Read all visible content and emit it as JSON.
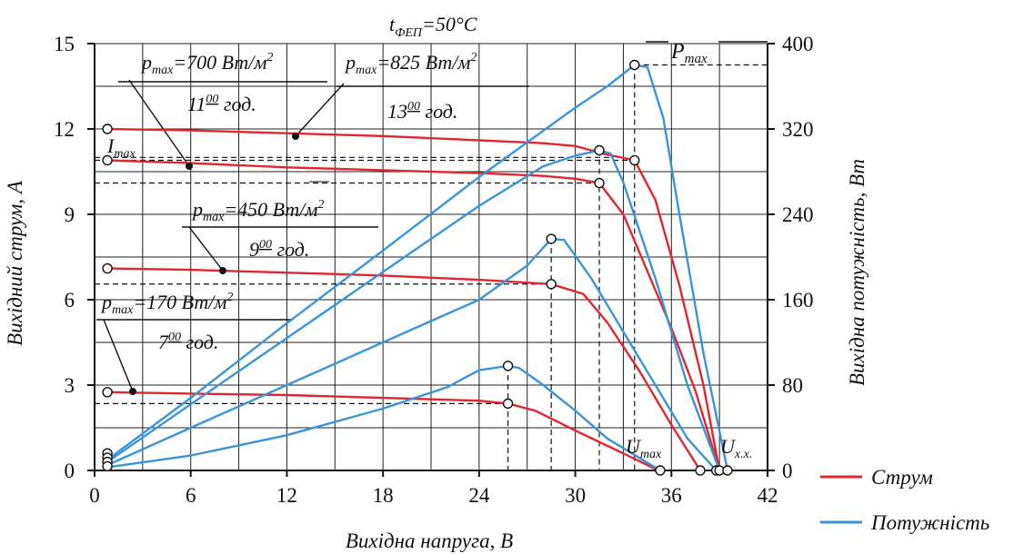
{
  "chart_data": {
    "type": "line",
    "title": "t",
    "title_sub": "ФЕП",
    "title_tail": "=50°C",
    "xlabel": "Вихідна напруга, В",
    "ylabel_left": "Вихідний струм, А",
    "ylabel_right": "Вихідна потужність, Вт",
    "xlim": [
      0,
      42
    ],
    "ylim_left": [
      0,
      15
    ],
    "ylim_right": [
      0,
      400
    ],
    "x_ticks": [
      "0",
      "6",
      "12",
      "18",
      "24",
      "30",
      "36",
      "42"
    ],
    "y_left_ticks": [
      "0",
      "3",
      "6",
      "9",
      "12",
      "15"
    ],
    "y_right_ticks": [
      "0",
      "80",
      "160",
      "240",
      "320",
      "400"
    ],
    "grid": true,
    "colors": {
      "current": "#e0262e",
      "power": "#3a95d8",
      "axis": "#111111"
    },
    "legend": [
      {
        "label": "Струм",
        "color": "#e0262e"
      },
      {
        "label": "Потужність",
        "color": "#3a95d8"
      }
    ],
    "series": [
      {
        "kind": "current",
        "x": [
          0.8,
          6,
          12,
          18,
          24,
          26,
          28,
          30,
          32,
          33.7,
          35,
          36.5,
          38,
          39
        ],
        "y": [
          12.0,
          11.95,
          11.85,
          11.75,
          11.6,
          11.55,
          11.5,
          11.4,
          11.1,
          10.9,
          9.5,
          6.5,
          3.0,
          0
        ]
      },
      {
        "kind": "current",
        "x": [
          0.8,
          6,
          12,
          18,
          24,
          28,
          30,
          31.5,
          33,
          34.5,
          36,
          37.5,
          39
        ],
        "y": [
          10.9,
          10.8,
          10.65,
          10.55,
          10.45,
          10.35,
          10.25,
          10.1,
          9.0,
          7.0,
          5.0,
          2.8,
          0
        ]
      },
      {
        "kind": "current",
        "x": [
          0.8,
          6,
          12,
          18,
          24,
          28.5,
          30.5,
          32,
          34,
          36,
          37.8
        ],
        "y": [
          7.1,
          7.05,
          6.95,
          6.85,
          6.7,
          6.55,
          6.2,
          5.2,
          3.5,
          1.6,
          0
        ]
      },
      {
        "kind": "current",
        "x": [
          0.8,
          6,
          12,
          18,
          24,
          25.8,
          27.5,
          30,
          33,
          35.2
        ],
        "y": [
          2.75,
          2.7,
          2.65,
          2.55,
          2.45,
          2.35,
          2.1,
          1.4,
          0.6,
          0
        ]
      },
      {
        "kind": "power",
        "x": [
          0.8,
          6,
          12,
          18,
          24,
          30,
          32,
          33.7,
          34.5,
          35.5,
          36.5,
          38,
          39.5
        ],
        "y": [
          10,
          68,
          138,
          206,
          275,
          340,
          360,
          380,
          378,
          330,
          240,
          110,
          0
        ]
      },
      {
        "kind": "power",
        "x": [
          0.8,
          6,
          12,
          18,
          24,
          28,
          30,
          31.5,
          32.2,
          33,
          35,
          37,
          39
        ],
        "y": [
          8,
          62,
          124,
          186,
          248,
          285,
          295,
          300,
          297,
          270,
          180,
          80,
          0
        ]
      },
      {
        "kind": "power",
        "x": [
          0.8,
          6,
          12,
          18,
          24,
          27,
          28.5,
          29.3,
          31,
          33,
          35,
          37,
          38.8
        ],
        "y": [
          5,
          40,
          80,
          120,
          160,
          192,
          217,
          216,
          180,
          130,
          80,
          30,
          0
        ]
      },
      {
        "kind": "power",
        "x": [
          0.8,
          6,
          12,
          18,
          22,
          24,
          25.8,
          26.5,
          28,
          30,
          32,
          35.3
        ],
        "y": [
          3,
          14,
          33,
          58,
          78,
          94,
          98,
          96,
          80,
          56,
          30,
          0
        ]
      }
    ],
    "open_markers": [
      {
        "x": 0.8,
        "y_current": 12.0
      },
      {
        "x": 0.8,
        "y_current": 10.9
      },
      {
        "x": 0.8,
        "y_current": 7.1
      },
      {
        "x": 0.8,
        "y_current": 2.75
      },
      {
        "x": 0.8,
        "y_current": 0.6
      },
      {
        "x": 0.8,
        "y_current": 0.45
      },
      {
        "x": 0.8,
        "y_current": 0.3
      },
      {
        "x": 0.8,
        "y_current": 0.15
      },
      {
        "x": 33.7,
        "y_current": 10.9
      },
      {
        "x": 31.5,
        "y_current": 10.1
      },
      {
        "x": 28.5,
        "y_current": 6.55
      },
      {
        "x": 25.8,
        "y_current": 2.35
      },
      {
        "x": 33.7,
        "y_power": 380
      },
      {
        "x": 31.5,
        "y_power": 300
      },
      {
        "x": 28.5,
        "y_power": 217
      },
      {
        "x": 25.8,
        "y_power": 98
      },
      {
        "x": 35.3,
        "y_current": 0
      },
      {
        "x": 37.8,
        "y_current": 0
      },
      {
        "x": 38.8,
        "y_current": 0
      },
      {
        "x": 39.0,
        "y_current": 0
      },
      {
        "x": 39.5,
        "y_current": 0
      }
    ],
    "annotations": {
      "pmax_825": {
        "p": "p",
        "sub": "max",
        "value": "=825 Вт/м",
        "sup": "2",
        "hour": "13",
        "hour_sup": "00",
        "unit": " год."
      },
      "pmax_700": {
        "p": "p",
        "sub": "max",
        "value": "=700 Вт/м",
        "sup": "2",
        "hour": "11",
        "hour_sup": "00",
        "unit": " год."
      },
      "pmax_450": {
        "p": "p",
        "sub": "max",
        "value": "=450 Вт/м",
        "sup": "2",
        "hour": "9",
        "hour_sup": "00",
        "unit": " год."
      },
      "pmax_170": {
        "p": "p",
        "sub": "max",
        "value": "=170 Вт/м",
        "sup": "2",
        "hour": "7",
        "hour_sup": "00",
        "unit": " год."
      },
      "i_max": {
        "main": "I",
        "sub": "max"
      },
      "p_max": {
        "main": "P",
        "sub": "max"
      },
      "u_max": {
        "main": "U",
        "sub": "max"
      },
      "u_xx": {
        "main": "U",
        "sub": "x.x."
      }
    }
  }
}
